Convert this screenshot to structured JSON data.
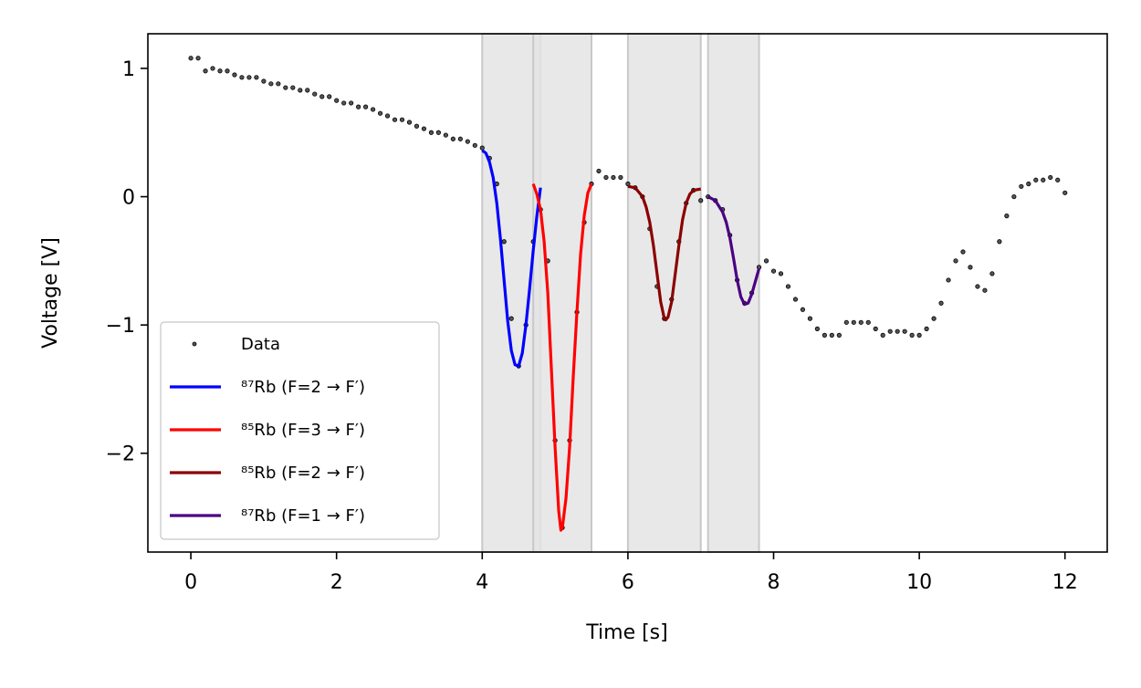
{
  "chart_data": {
    "type": "line",
    "xlabel": "Time [s]",
    "ylabel": "Voltage [V]",
    "xlim": [
      -0.59,
      12.58
    ],
    "ylim": [
      -2.77,
      1.27
    ],
    "xticks": [
      0,
      2,
      4,
      6,
      8,
      10,
      12
    ],
    "yticks": [
      {
        "value": -2,
        "label": "−2"
      },
      {
        "value": -1,
        "label": "−1"
      },
      0,
      1
    ],
    "legend": "lower left",
    "spans": [
      [
        4.0,
        4.8
      ],
      [
        4.7,
        5.5
      ],
      [
        6.0,
        7.0
      ],
      [
        7.1,
        7.8
      ]
    ],
    "span_color": "#e4e4e4",
    "series": [
      {
        "name": "Data",
        "type": "scatter",
        "color": "#000000",
        "x": [
          0,
          0.1,
          0.2,
          0.3,
          0.4,
          0.5,
          0.6,
          0.7,
          0.8,
          0.9,
          1,
          1.1,
          1.2,
          1.3,
          1.4,
          1.5,
          1.6,
          1.7,
          1.8,
          1.9,
          2,
          2.1,
          2.2,
          2.3,
          2.4,
          2.5,
          2.6,
          2.7,
          2.8,
          2.9,
          3,
          3.1,
          3.2,
          3.3,
          3.4,
          3.5,
          3.6,
          3.7,
          3.8,
          3.9,
          4,
          4.1,
          4.2,
          4.3,
          4.4,
          4.5,
          4.6,
          4.7,
          4.8,
          4.9,
          5,
          5.1,
          5.2,
          5.3,
          5.4,
          5.5,
          5.6,
          5.7,
          5.8,
          5.9,
          6,
          6.1,
          6.2,
          6.3,
          6.4,
          6.5,
          6.6,
          6.7,
          6.8,
          6.9,
          7,
          7.1,
          7.2,
          7.3,
          7.4,
          7.5,
          7.6,
          7.7,
          7.8,
          7.9,
          8,
          8.1,
          8.2,
          8.3,
          8.4,
          8.5,
          8.6,
          8.7,
          8.8,
          8.9,
          9,
          9.1,
          9.2,
          9.3,
          9.4,
          9.5,
          9.6,
          9.7,
          9.8,
          9.9,
          10,
          10.1,
          10.2,
          10.3,
          10.4,
          10.5,
          10.6,
          10.7,
          10.8,
          10.9,
          11,
          11.1,
          11.2,
          11.3,
          11.4,
          11.5,
          11.6,
          11.7,
          11.8,
          11.9,
          12
        ],
        "values": [
          1.08,
          1.08,
          0.98,
          1.0,
          0.98,
          0.98,
          0.95,
          0.93,
          0.93,
          0.93,
          0.9,
          0.88,
          0.88,
          0.85,
          0.85,
          0.83,
          0.83,
          0.8,
          0.78,
          0.78,
          0.75,
          0.73,
          0.73,
          0.7,
          0.7,
          0.68,
          0.65,
          0.63,
          0.6,
          0.6,
          0.58,
          0.55,
          0.53,
          0.5,
          0.5,
          0.48,
          0.45,
          0.45,
          0.43,
          0.4,
          0.38,
          0.3,
          0.1,
          -0.35,
          -0.95,
          -1.32,
          -1.0,
          -0.35,
          -0.1,
          -0.5,
          -1.9,
          -2.58,
          -1.9,
          -0.9,
          -0.2,
          0.1,
          0.2,
          0.15,
          0.15,
          0.15,
          0.1,
          0.07,
          0.0,
          -0.25,
          -0.7,
          -0.95,
          -0.8,
          -0.35,
          -0.05,
          0.05,
          -0.03,
          0.0,
          -0.03,
          -0.1,
          -0.3,
          -0.65,
          -0.83,
          -0.75,
          -0.55,
          -0.5,
          -0.58,
          -0.6,
          -0.7,
          -0.8,
          -0.88,
          -0.95,
          -1.03,
          -1.08,
          -1.08,
          -1.08,
          -0.98,
          -0.98,
          -0.98,
          -0.98,
          -1.03,
          -1.08,
          -1.05,
          -1.05,
          -1.05,
          -1.08,
          -1.08,
          -1.03,
          -0.95,
          -0.83,
          -0.65,
          -0.5,
          -0.43,
          -0.55,
          -0.7,
          -0.73,
          -0.6,
          -0.35,
          -0.15,
          0.0,
          0.08,
          0.1,
          0.13,
          0.13,
          0.15,
          0.13,
          0.03
        ]
      },
      {
        "name": "⁸⁷Rb (F=2 → F′)",
        "type": "line",
        "color": "#0000ff",
        "x": [
          4.0,
          4.05,
          4.1,
          4.15,
          4.2,
          4.25,
          4.3,
          4.35,
          4.4,
          4.45,
          4.5,
          4.55,
          4.6,
          4.65,
          4.7,
          4.75,
          4.8
        ],
        "values": [
          0.36,
          0.34,
          0.27,
          0.15,
          -0.05,
          -0.33,
          -0.65,
          -0.97,
          -1.2,
          -1.31,
          -1.32,
          -1.22,
          -1.0,
          -0.72,
          -0.42,
          -0.15,
          0.07
        ]
      },
      {
        "name": "⁸⁵Rb (F=3 → F′)",
        "type": "line",
        "color": "#ff0000",
        "x": [
          4.7,
          4.75,
          4.8,
          4.85,
          4.9,
          4.95,
          5.0,
          5.05,
          5.08,
          5.1,
          5.15,
          5.2,
          5.25,
          5.3,
          5.35,
          5.4,
          5.45,
          5.5
        ],
        "values": [
          0.1,
          0.02,
          -0.1,
          -0.35,
          -0.75,
          -1.35,
          -1.95,
          -2.45,
          -2.6,
          -2.58,
          -2.35,
          -1.95,
          -1.4,
          -0.9,
          -0.45,
          -0.15,
          0.03,
          0.1
        ]
      },
      {
        "name": "⁸⁵Rb (F=2 → F′)",
        "type": "line",
        "color": "#8b0000",
        "x": [
          6.0,
          6.1,
          6.2,
          6.25,
          6.3,
          6.35,
          6.4,
          6.45,
          6.5,
          6.52,
          6.55,
          6.6,
          6.65,
          6.7,
          6.75,
          6.8,
          6.85,
          6.9,
          7.0
        ],
        "values": [
          0.08,
          0.07,
          0.0,
          -0.08,
          -0.2,
          -0.38,
          -0.6,
          -0.82,
          -0.95,
          -0.96,
          -0.94,
          -0.82,
          -0.6,
          -0.38,
          -0.18,
          -0.05,
          0.02,
          0.05,
          0.06
        ]
      },
      {
        "name": "⁸⁷Rb (F=1 → F′)",
        "type": "line",
        "color": "#4b0082",
        "x": [
          7.1,
          7.2,
          7.3,
          7.35,
          7.4,
          7.45,
          7.5,
          7.55,
          7.6,
          7.65,
          7.7,
          7.75,
          7.8
        ],
        "values": [
          0.0,
          -0.03,
          -0.12,
          -0.2,
          -0.32,
          -0.48,
          -0.65,
          -0.78,
          -0.84,
          -0.83,
          -0.76,
          -0.66,
          -0.56
        ]
      }
    ]
  }
}
